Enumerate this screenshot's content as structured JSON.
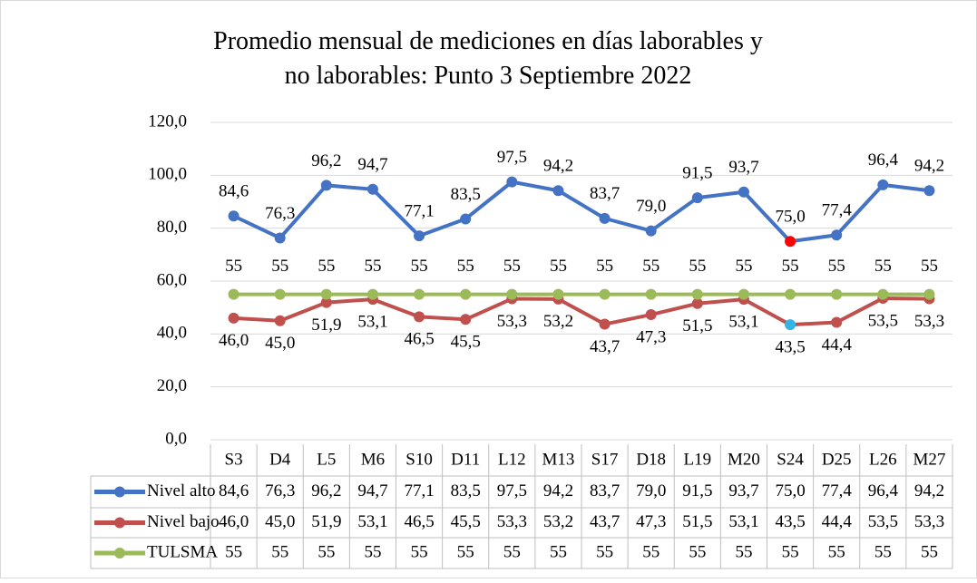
{
  "chart_data": {
    "type": "line",
    "title": "Promedio mensual de mediciones en días laborables y no laborables: Punto 3 Septiembre 2022",
    "categories": [
      "S3",
      "D4",
      "L5",
      "M6",
      "S10",
      "D11",
      "L12",
      "M13",
      "S17",
      "D18",
      "L19",
      "M20",
      "S24",
      "D25",
      "L26",
      "M27"
    ],
    "series": [
      {
        "name": "Nivel alto",
        "color": "#4472c4",
        "values": [
          84.6,
          76.3,
          96.2,
          94.7,
          77.1,
          83.5,
          97.5,
          94.2,
          83.7,
          79.0,
          91.5,
          93.7,
          75.0,
          77.4,
          96.4,
          94.2
        ],
        "value_labels": [
          "84,6",
          "76,3",
          "96,2",
          "94,7",
          "77,1",
          "83,5",
          "97,5",
          "94,2",
          "83,7",
          "79,0",
          "91,5",
          "93,7",
          "75,0",
          "77,4",
          "96,4",
          "94,2"
        ],
        "point_colors": [
          "#4472c4",
          "#4472c4",
          "#4472c4",
          "#4472c4",
          "#4472c4",
          "#4472c4",
          "#4472c4",
          "#4472c4",
          "#4472c4",
          "#4472c4",
          "#4472c4",
          "#4472c4",
          "#ff0000",
          "#4472c4",
          "#4472c4",
          "#4472c4"
        ]
      },
      {
        "name": "Nivel bajo",
        "color": "#c0504d",
        "values": [
          46.0,
          45.0,
          51.9,
          53.1,
          46.5,
          45.5,
          53.3,
          53.2,
          43.7,
          47.3,
          51.5,
          53.1,
          43.5,
          44.4,
          53.5,
          53.3
        ],
        "value_labels": [
          "46,0",
          "45,0",
          "51,9",
          "53,1",
          "46,5",
          "45,5",
          "53,3",
          "53,2",
          "43,7",
          "47,3",
          "51,5",
          "53,1",
          "43,5",
          "44,4",
          "53,5",
          "53,3"
        ],
        "point_colors": [
          "#c0504d",
          "#c0504d",
          "#c0504d",
          "#c0504d",
          "#c0504d",
          "#c0504d",
          "#c0504d",
          "#c0504d",
          "#c0504d",
          "#c0504d",
          "#c0504d",
          "#c0504d",
          "#33b5e5",
          "#c0504d",
          "#c0504d",
          "#c0504d"
        ]
      },
      {
        "name": "TULSMA",
        "color": "#9bbb59",
        "values": [
          55,
          55,
          55,
          55,
          55,
          55,
          55,
          55,
          55,
          55,
          55,
          55,
          55,
          55,
          55,
          55
        ]
      }
    ],
    "ylim": [
      0,
      120
    ],
    "yticks": [
      {
        "value": 0,
        "label": "0,0"
      },
      {
        "value": 20,
        "label": "20,0"
      },
      {
        "value": 40,
        "label": "40,0"
      },
      {
        "value": 60,
        "label": "60,0"
      },
      {
        "value": 80,
        "label": "80,0"
      },
      {
        "value": 100,
        "label": "100,0"
      },
      {
        "value": 120,
        "label": "120,0"
      }
    ],
    "grid": true
  }
}
